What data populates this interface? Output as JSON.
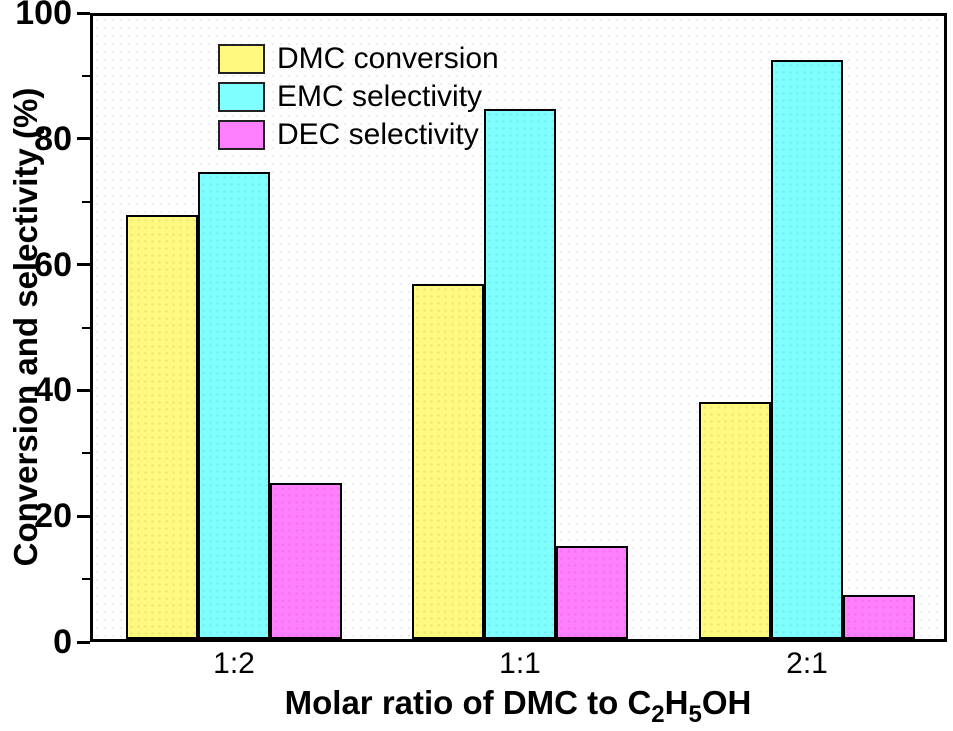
{
  "figure": {
    "background": "#ffffff",
    "axis_color": "#000000"
  },
  "chart_data": {
    "type": "bar",
    "title": "",
    "categories": [
      "1:2",
      "1:1",
      "2:1"
    ],
    "series": [
      {
        "name": "DMC conversion",
        "color": "#fff97f",
        "values": [
          68,
          57,
          38
        ]
      },
      {
        "name": "EMC selectivity",
        "color": "#7fffff",
        "values": [
          75,
          85,
          93
        ]
      },
      {
        "name": "DEC selectivity",
        "color": "#ff7fff",
        "values": [
          25,
          15,
          7
        ]
      }
    ],
    "xlabel": "Molar ratio of DMC to C2H5OH",
    "xlabel_parts": [
      {
        "text": "Molar ratio of DMC to C",
        "sub": false
      },
      {
        "text": "2",
        "sub": true
      },
      {
        "text": "H",
        "sub": false
      },
      {
        "text": "5",
        "sub": true
      },
      {
        "text": "OH",
        "sub": false
      }
    ],
    "ylabel": "Conversion and selectivity (%)",
    "ylim": [
      0,
      100
    ],
    "yticks_major": [
      0,
      20,
      40,
      60,
      80,
      100
    ],
    "yticks_minor": [
      10,
      30,
      50,
      70,
      90
    ],
    "legend_position": "top-left",
    "grid": false,
    "bar_border_color": "#000000"
  }
}
